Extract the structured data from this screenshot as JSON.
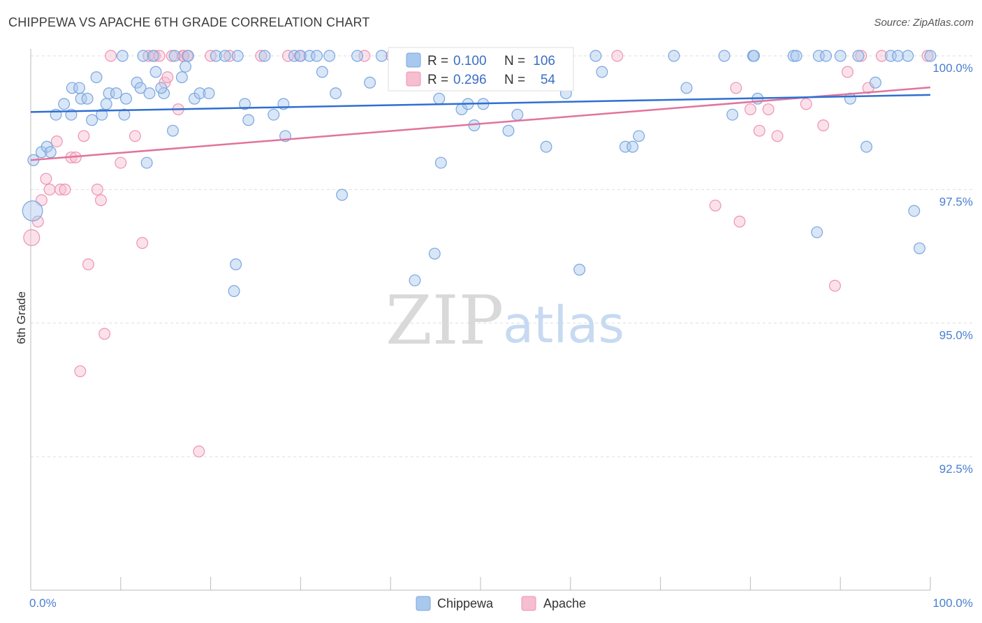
{
  "title": "CHIPPEWA VS APACHE 6TH GRADE CORRELATION CHART",
  "source": "Source: ZipAtlas.com",
  "watermark": {
    "zip": "ZIP",
    "atlas": "atlas"
  },
  "colors": {
    "chippewa_fill": "#a9c8ee",
    "chippewa_stroke": "#7aa6df",
    "chippewa_line": "#2f6fd1",
    "apache_fill": "#f6bed0",
    "apache_stroke": "#ee93b2",
    "apache_line": "#e2739c",
    "axis_label": "#4a7fd0",
    "grid": "#dddddd"
  },
  "legend": {
    "rows": [
      {
        "r_label": "R =",
        "r_value": "0.100",
        "n_label": "N =",
        "n_value": "106"
      },
      {
        "r_label": "R =",
        "r_value": "0.296",
        "n_label": "N =",
        "n_value": "54"
      }
    ]
  },
  "chart_data": {
    "type": "scatter",
    "title": "CHIPPEWA VS APACHE 6TH GRADE CORRELATION CHART",
    "xlabel": "",
    "ylabel": "6th Grade",
    "xlim": [
      0,
      100
    ],
    "ylim": [
      90.2,
      100.45
    ],
    "x_ticks": [
      0,
      10,
      20,
      30,
      40,
      50,
      60,
      70,
      80,
      90,
      100
    ],
    "x_tick_labels": {
      "left": "0.0%",
      "right": "100.0%"
    },
    "y_ticks": [
      {
        "value": 100.0,
        "label": "100.0%"
      },
      {
        "value": 97.5,
        "label": "97.5%"
      },
      {
        "value": 95.0,
        "label": "95.0%"
      },
      {
        "value": 92.5,
        "label": "92.5%"
      }
    ],
    "grid": true,
    "legend_position": "top-center",
    "series": [
      {
        "name": "Chippewa",
        "color": "#a9c8ee",
        "trend": {
          "x": [
            0,
            100
          ],
          "y": [
            98.95,
            99.27
          ]
        },
        "points": [
          [
            0.3,
            98.05,
            11
          ],
          [
            1.2,
            98.2,
            11
          ],
          [
            1.8,
            98.3,
            11
          ],
          [
            2.2,
            98.2,
            11
          ],
          [
            2.8,
            98.9,
            11
          ],
          [
            3.7,
            99.1,
            11
          ],
          [
            4.5,
            98.9,
            11
          ],
          [
            4.6,
            99.4,
            11
          ],
          [
            5.4,
            99.4,
            11
          ],
          [
            5.6,
            99.2,
            11
          ],
          [
            6.3,
            99.2,
            11
          ],
          [
            6.8,
            98.8,
            11
          ],
          [
            7.3,
            99.6,
            11
          ],
          [
            7.9,
            98.9,
            11
          ],
          [
            8.4,
            99.1,
            11
          ],
          [
            8.7,
            99.3,
            11
          ],
          [
            9.5,
            99.3,
            11
          ],
          [
            10.2,
            100.0,
            11
          ],
          [
            10.4,
            98.9,
            11
          ],
          [
            10.6,
            99.2,
            11
          ],
          [
            11.8,
            99.5,
            11
          ],
          [
            12.2,
            99.4,
            11
          ],
          [
            12.5,
            100.0,
            11
          ],
          [
            12.9,
            98.0,
            11
          ],
          [
            13.2,
            99.3,
            11
          ],
          [
            13.9,
            99.7,
            11
          ],
          [
            14.8,
            99.3,
            11
          ],
          [
            14.5,
            99.4,
            11
          ],
          [
            15.8,
            98.6,
            11
          ],
          [
            16.0,
            100.0,
            11
          ],
          [
            16.8,
            99.6,
            11
          ],
          [
            17.2,
            99.8,
            11
          ],
          [
            18.2,
            99.2,
            11
          ],
          [
            18.8,
            99.3,
            11
          ],
          [
            19.8,
            99.3,
            11
          ],
          [
            20.6,
            100.0,
            11
          ],
          [
            21.6,
            100.0,
            11
          ],
          [
            23.0,
            100.0,
            11
          ],
          [
            22.6,
            95.6,
            11
          ],
          [
            22.8,
            96.1,
            11
          ],
          [
            23.8,
            99.1,
            11
          ],
          [
            24.2,
            98.8,
            11
          ],
          [
            26.0,
            100.0,
            11
          ],
          [
            27.0,
            98.9,
            11
          ],
          [
            28.1,
            99.1,
            11
          ],
          [
            28.3,
            98.5,
            11
          ],
          [
            29.3,
            100.0,
            11
          ],
          [
            30.0,
            100.0,
            11
          ],
          [
            31.0,
            100.0,
            11
          ],
          [
            31.8,
            100.0,
            11
          ],
          [
            32.4,
            99.7,
            11
          ],
          [
            33.2,
            100.0,
            11
          ],
          [
            33.9,
            99.3,
            11
          ],
          [
            34.6,
            97.4,
            11
          ],
          [
            36.3,
            100.0,
            11
          ],
          [
            37.7,
            99.5,
            11
          ],
          [
            39.0,
            100.0,
            11
          ],
          [
            41.0,
            100.0,
            11
          ],
          [
            42.7,
            95.8,
            11
          ],
          [
            44.9,
            96.3,
            11
          ],
          [
            45.4,
            99.2,
            11
          ],
          [
            47.0,
            100.0,
            11
          ],
          [
            47.9,
            99.0,
            11
          ],
          [
            45.2,
            100.0,
            11
          ],
          [
            45.6,
            98.0,
            11
          ],
          [
            48.6,
            99.1,
            11
          ],
          [
            49.3,
            98.7,
            11
          ],
          [
            49.8,
            100.0,
            11
          ],
          [
            50.3,
            99.1,
            11
          ],
          [
            53.1,
            98.6,
            11
          ],
          [
            54.1,
            98.9,
            11
          ],
          [
            57.3,
            98.3,
            11
          ],
          [
            59.5,
            99.3,
            11
          ],
          [
            61.0,
            96.0,
            11
          ],
          [
            62.8,
            100.0,
            11
          ],
          [
            63.5,
            99.7,
            11
          ],
          [
            66.1,
            98.3,
            11
          ],
          [
            66.9,
            98.3,
            11
          ],
          [
            67.6,
            98.5,
            11
          ],
          [
            71.5,
            100.0,
            11
          ],
          [
            72.9,
            99.4,
            11
          ],
          [
            77.1,
            100.0,
            11
          ],
          [
            78.0,
            98.9,
            11
          ],
          [
            80.3,
            100.0,
            11
          ],
          [
            80.4,
            100.0,
            11
          ],
          [
            80.8,
            99.2,
            11
          ],
          [
            84.8,
            100.0,
            11
          ],
          [
            85.1,
            100.0,
            11
          ],
          [
            87.6,
            100.0,
            11
          ],
          [
            88.4,
            100.0,
            11
          ],
          [
            87.4,
            96.7,
            11
          ],
          [
            90.0,
            100.0,
            11
          ],
          [
            91.1,
            99.2,
            11
          ],
          [
            92.0,
            100.0,
            11
          ],
          [
            92.9,
            98.3,
            11
          ],
          [
            93.9,
            99.5,
            11
          ],
          [
            95.6,
            100.0,
            11
          ],
          [
            96.4,
            100.0,
            11
          ],
          [
            97.5,
            100.0,
            11
          ],
          [
            98.2,
            97.1,
            11
          ],
          [
            98.8,
            96.4,
            11
          ],
          [
            100.0,
            100.0,
            11
          ],
          [
            0.2,
            97.1,
            20
          ],
          [
            59.0,
            100.0,
            11
          ],
          [
            13.6,
            100.0,
            11
          ],
          [
            17.5,
            100.0,
            11
          ]
        ]
      },
      {
        "name": "Apache",
        "color": "#f6bed0",
        "trend": {
          "x": [
            0,
            100
          ],
          "y": [
            98.05,
            99.41
          ]
        },
        "points": [
          [
            0.1,
            96.6,
            16
          ],
          [
            0.8,
            96.9,
            11
          ],
          [
            1.2,
            97.3,
            11
          ],
          [
            1.7,
            97.7,
            11
          ],
          [
            2.1,
            97.5,
            11
          ],
          [
            2.9,
            98.4,
            11
          ],
          [
            3.3,
            97.5,
            11
          ],
          [
            3.8,
            97.5,
            11
          ],
          [
            4.5,
            98.1,
            11
          ],
          [
            5.0,
            98.1,
            11
          ],
          [
            5.5,
            94.1,
            11
          ],
          [
            5.9,
            98.5,
            11
          ],
          [
            6.4,
            96.1,
            11
          ],
          [
            7.4,
            97.5,
            11
          ],
          [
            7.8,
            97.3,
            11
          ],
          [
            8.2,
            94.8,
            11
          ],
          [
            8.9,
            100.0,
            11
          ],
          [
            10.0,
            98.0,
            11
          ],
          [
            11.6,
            98.5,
            11
          ],
          [
            12.4,
            96.5,
            11
          ],
          [
            13.1,
            100.0,
            11
          ],
          [
            13.8,
            100.0,
            11
          ],
          [
            14.3,
            100.0,
            11
          ],
          [
            14.9,
            99.5,
            11
          ],
          [
            15.2,
            99.6,
            11
          ],
          [
            15.7,
            100.0,
            11
          ],
          [
            16.4,
            99.0,
            11
          ],
          [
            16.9,
            100.0,
            11
          ],
          [
            17.0,
            100.0,
            11
          ],
          [
            17.4,
            100.0,
            11
          ],
          [
            18.7,
            92.6,
            11
          ],
          [
            20.0,
            100.0,
            11
          ],
          [
            22.1,
            100.0,
            11
          ],
          [
            25.6,
            100.0,
            11
          ],
          [
            28.6,
            100.0,
            11
          ],
          [
            29.9,
            100.0,
            11
          ],
          [
            37.1,
            100.0,
            11
          ],
          [
            40.1,
            100.0,
            11
          ],
          [
            65.2,
            100.0,
            11
          ],
          [
            76.1,
            97.2,
            11
          ],
          [
            78.4,
            99.4,
            11
          ],
          [
            78.8,
            96.9,
            11
          ],
          [
            80.0,
            99.0,
            11
          ],
          [
            81.0,
            98.6,
            11
          ],
          [
            82.0,
            99.0,
            11
          ],
          [
            83.0,
            98.5,
            11
          ],
          [
            88.1,
            98.7,
            11
          ],
          [
            86.2,
            99.1,
            11
          ],
          [
            89.4,
            95.7,
            11
          ],
          [
            90.8,
            99.7,
            11
          ],
          [
            92.3,
            100.0,
            11
          ],
          [
            93.1,
            99.4,
            11
          ],
          [
            94.6,
            100.0,
            11
          ],
          [
            99.7,
            100.0,
            11
          ]
        ]
      }
    ]
  }
}
